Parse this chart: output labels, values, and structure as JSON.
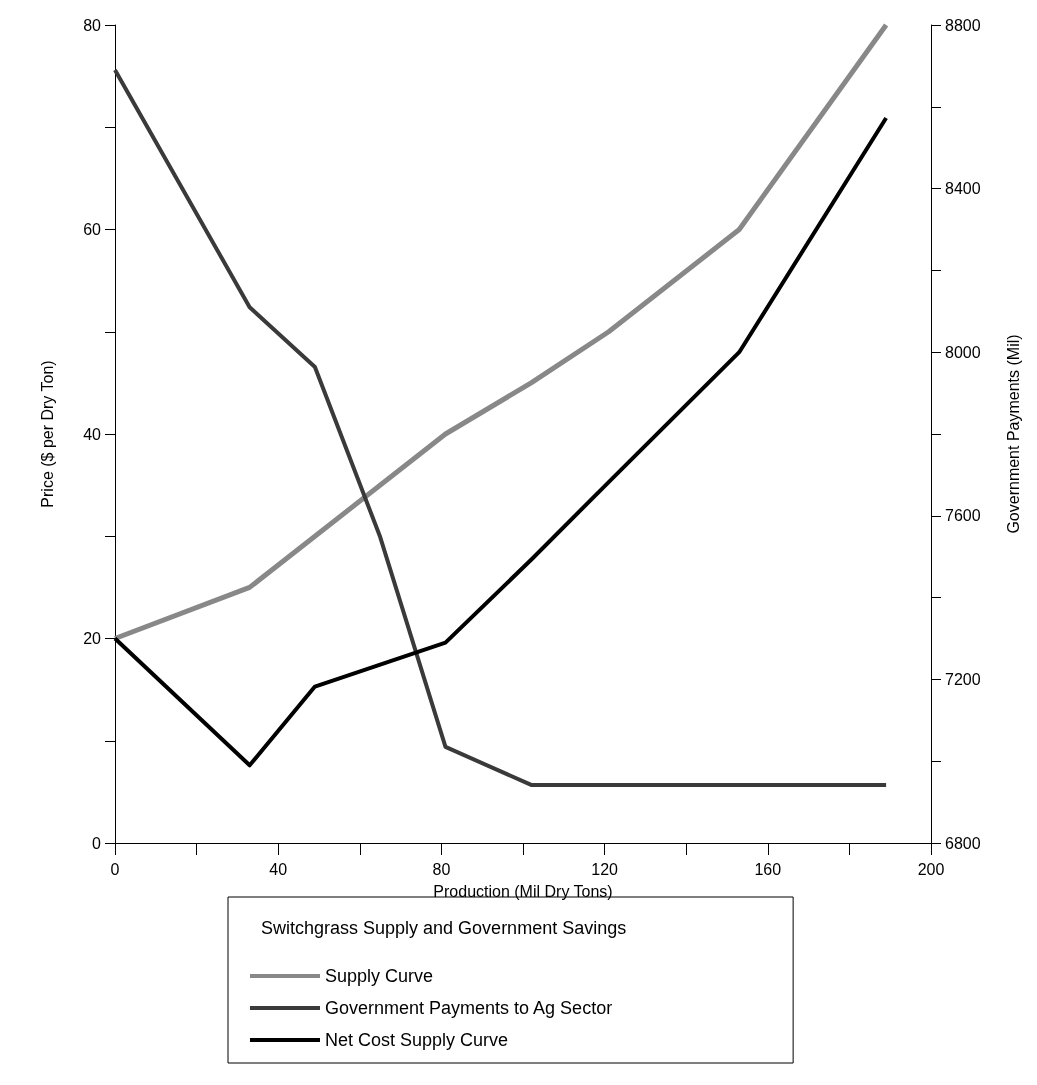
{
  "chart_data": {
    "type": "line",
    "xlabel": "Production (Mil Dry Tons)",
    "ylabel": "Price ($ per Dry Ton)",
    "y2label": "Government Payments (Mil)",
    "legend_title": "Switchgrass Supply and Government Savings",
    "xlim": [
      0,
      200
    ],
    "xticks": [
      0,
      {
        "value": 20,
        "label": null
      },
      40,
      {
        "value": 60,
        "label": null
      },
      80,
      {
        "value": 100,
        "label": null
      },
      120,
      {
        "value": 140,
        "label": null
      },
      160,
      {
        "value": 180,
        "label": null
      },
      200
    ],
    "ylim": [
      0,
      80
    ],
    "yticks": [
      0,
      {
        "value": 10,
        "label": null
      },
      20,
      {
        "value": 30,
        "label": null
      },
      40,
      {
        "value": 50,
        "label": null
      },
      60,
      {
        "value": 70,
        "label": null
      },
      80
    ],
    "y2lim": [
      6800,
      8800
    ],
    "y2ticks": [
      6800,
      {
        "value": 7000,
        "label": null
      },
      7200,
      {
        "value": 7400,
        "label": null
      },
      7600,
      {
        "value": 7800,
        "label": null
      },
      8000,
      {
        "value": 8200,
        "label": null
      },
      8400,
      {
        "value": 8600,
        "label": null
      },
      8800
    ],
    "grid": false,
    "legend": "bottom",
    "marker": "none",
    "line_style": "solid",
    "series": [
      {
        "name": "Supply Curve",
        "color": "#888888",
        "x": [
          0,
          33,
          81,
          102,
          121,
          153,
          189
        ],
        "values": [
          20,
          25,
          40,
          45,
          50,
          60,
          80
        ]
      },
      {
        "name": "Government Payments to Ag Sector",
        "color": "#3a3a3a",
        "axis": "y2",
        "x": [
          0,
          33,
          49,
          65,
          81,
          102,
          189
        ],
        "values": [
          8690,
          8110,
          7964,
          7548,
          7035,
          6942,
          6942
        ]
      },
      {
        "name": "Net Cost Supply Curve",
        "color": "#000000",
        "x": [
          0,
          33,
          49,
          81,
          102,
          121,
          153,
          189
        ],
        "values": [
          20,
          7.6,
          15.3,
          19.6,
          27.7,
          35.3,
          48,
          70.9
        ]
      }
    ]
  }
}
